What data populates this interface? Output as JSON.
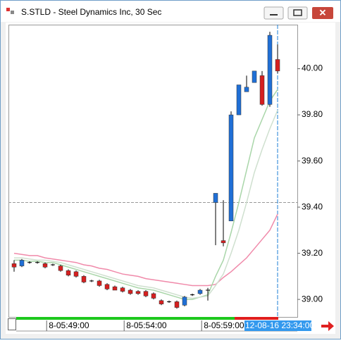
{
  "chart_data": {
    "type": "candlestick",
    "title": "S.STLD - Steel Dynamics Inc, 30 Sec",
    "open": [
      39.155,
      39.145,
      39.16,
      39.16,
      39.155,
      39.15,
      39.145,
      39.125,
      39.12,
      39.1,
      39.08,
      39.08,
      39.065,
      39.055,
      39.05,
      39.04,
      39.035,
      39.035,
      39.025,
      38.995,
      38.99,
      38.99,
      38.975,
      39.02,
      39.025,
      39.04,
      39.42,
      39.255,
      39.34,
      39.8,
      39.9,
      39.94,
      39.97,
      39.845,
      40.04
    ],
    "high": [
      39.17,
      39.175,
      39.165,
      39.165,
      39.16,
      39.155,
      39.15,
      39.13,
      39.125,
      39.105,
      39.085,
      39.085,
      39.07,
      39.06,
      39.055,
      39.045,
      39.04,
      39.04,
      39.03,
      39.0,
      38.995,
      38.995,
      39.015,
      39.025,
      39.045,
      39.05,
      39.46,
      39.43,
      39.815,
      39.93,
      39.97,
      39.99,
      39.99,
      40.16,
      40.105
    ],
    "low": [
      39.12,
      39.14,
      39.155,
      39.155,
      39.135,
      39.145,
      39.12,
      39.1,
      39.095,
      39.07,
      39.075,
      39.055,
      39.04,
      39.04,
      39.03,
      39.02,
      39.02,
      39.01,
      39.0,
      38.975,
      38.985,
      38.96,
      38.97,
      39.015,
      39.02,
      38.995,
      39.235,
      39.23,
      39.34,
      39.8,
      39.9,
      39.94,
      39.84,
      39.835,
      39.98
    ],
    "close": [
      39.14,
      39.17,
      39.16,
      39.16,
      39.14,
      39.15,
      39.125,
      39.105,
      39.1,
      39.075,
      39.08,
      39.06,
      39.045,
      39.04,
      39.035,
      39.025,
      39.025,
      39.015,
      39.005,
      38.98,
      38.99,
      38.965,
      39.01,
      39.02,
      39.04,
      39.04,
      39.46,
      39.245,
      39.8,
      39.93,
      39.92,
      39.99,
      39.845,
      40.145,
      39.99
    ],
    "up_color": "#1f6fd6",
    "down_color": "#d61f1f",
    "flat_color": "#000000",
    "series": [
      {
        "color": "#f08aaa",
        "values": [
          39.2,
          39.195,
          39.19,
          39.19,
          39.18,
          39.175,
          39.17,
          39.165,
          39.16,
          39.15,
          39.145,
          39.135,
          39.13,
          39.12,
          39.11,
          39.105,
          39.1,
          39.09,
          39.085,
          39.08,
          39.075,
          39.07,
          39.065,
          39.06,
          39.06,
          39.06,
          39.065,
          39.095,
          39.12,
          39.15,
          39.18,
          39.22,
          39.26,
          39.3,
          39.37
        ]
      },
      {
        "color": "#a9d6a9",
        "values": [
          39.17,
          39.17,
          39.165,
          39.165,
          39.16,
          39.16,
          39.15,
          39.14,
          39.13,
          39.12,
          39.11,
          39.1,
          39.09,
          39.08,
          39.07,
          39.06,
          39.05,
          39.045,
          39.04,
          39.03,
          39.02,
          39.01,
          39.0,
          39.0,
          39.01,
          39.02,
          39.1,
          39.17,
          39.29,
          39.42,
          39.56,
          39.7,
          39.78,
          39.86,
          39.91
        ]
      },
      {
        "color": "#cfe0cf",
        "values": [
          39.18,
          39.18,
          39.175,
          39.17,
          39.17,
          39.165,
          39.16,
          39.15,
          39.14,
          39.13,
          39.12,
          39.11,
          39.1,
          39.09,
          39.08,
          39.07,
          39.06,
          39.055,
          39.05,
          39.04,
          39.03,
          39.02,
          39.01,
          39.005,
          39.01,
          39.015,
          39.06,
          39.11,
          39.2,
          39.3,
          39.42,
          39.55,
          39.65,
          39.74,
          39.82
        ]
      }
    ],
    "ylim": [
      38.924,
      40.191
    ],
    "yticks": [
      {
        "value": 39,
        "label": "39.00"
      },
      {
        "value": 39.2,
        "label": "39.20"
      },
      {
        "value": 39.4,
        "label": "39.40"
      },
      {
        "value": 39.6,
        "label": "39.60"
      },
      {
        "value": 39.8,
        "label": "39.80"
      },
      {
        "value": 40,
        "label": "40.00"
      }
    ],
    "xticks": [
      {
        "value": 4.2,
        "label": "8-05:49:00"
      },
      {
        "value": 14.2,
        "label": "8-05:54:00"
      },
      {
        "value": 24.2,
        "label": "8-05:59:00"
      }
    ],
    "cursor": {
      "index": 34,
      "y": 39.42,
      "label": "12-08-16 23:34:00"
    }
  }
}
